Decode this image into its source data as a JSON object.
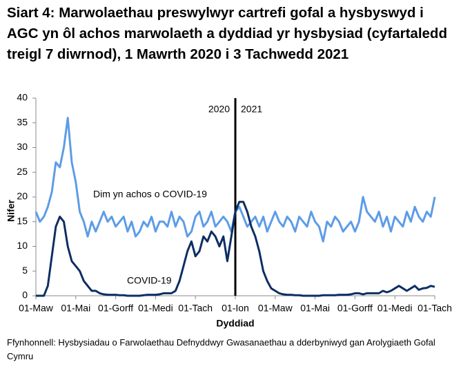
{
  "chart_data": {
    "type": "line",
    "title": "Siart 4: Marwolaethau preswylwyr cartrefi gofal a hysbyswyd i AGC yn ôl achos marwolaeth a dyddiad yr hysbysiad (cyfartaledd treigl 7 diwrnod), 1 Mawrth 2020 i 3 Tachwedd 2021",
    "xlabel": "Dyddiad",
    "ylabel": "Nifer",
    "source": "Ffynhonnell: Hysbysiadau o Farwolaethau Defnyddwyr Gwasanaethau a dderbyniwyd gan Arolygiaeth Gofal Cymru",
    "categories": [
      "01-Maw",
      null,
      null,
      null,
      null,
      null,
      null,
      null,
      null,
      null,
      "01-Mai",
      null,
      null,
      null,
      null,
      null,
      null,
      null,
      null,
      null,
      "01-Gorff",
      null,
      null,
      null,
      null,
      null,
      null,
      null,
      null,
      null,
      "01-Medi",
      null,
      null,
      null,
      null,
      null,
      null,
      null,
      null,
      null,
      "01-Tach",
      null,
      null,
      null,
      null,
      null,
      null,
      null,
      null,
      null,
      "01-Ion",
      null,
      null,
      null,
      null,
      null,
      null,
      null,
      null,
      null,
      "01-Maw",
      null,
      null,
      null,
      null,
      null,
      null,
      null,
      null,
      null,
      "01-Mai",
      null,
      null,
      null,
      null,
      null,
      null,
      null,
      null,
      null,
      "01-Gorff",
      null,
      null,
      null,
      null,
      null,
      null,
      null,
      null,
      null,
      "01-Medi",
      null,
      null,
      null,
      null,
      null,
      null,
      null,
      null,
      null,
      "01-Tach"
    ],
    "divider_index": 50,
    "annotations": [
      "2020",
      "2021"
    ],
    "series": [
      {
        "name": "Dim yn achos o COVID-19",
        "color": "#5d9ce6",
        "values": [
          17,
          15,
          16,
          18,
          21,
          27,
          26,
          30,
          36,
          27,
          23,
          17,
          15,
          12,
          15,
          13,
          15,
          17,
          15,
          16,
          14,
          15,
          16,
          13,
          15,
          12,
          13,
          15,
          14,
          16,
          13,
          15,
          15,
          14,
          17,
          14,
          16,
          15,
          12,
          13,
          16,
          17,
          14,
          15,
          17,
          14,
          15,
          16,
          15,
          13,
          17,
          18,
          16,
          14,
          15,
          16,
          14,
          16,
          13,
          15,
          17,
          15,
          14,
          16,
          15,
          13,
          16,
          15,
          14,
          17,
          15,
          14,
          11,
          15,
          14,
          16,
          15,
          13,
          14,
          15,
          13,
          15,
          20,
          17,
          16,
          15,
          17,
          14,
          16,
          13,
          16,
          15,
          14,
          17,
          15,
          18,
          16,
          15,
          17,
          16,
          20
        ]
      },
      {
        "name": "COVID-19",
        "color": "#0d2e63",
        "values": [
          0,
          0,
          0,
          2,
          8,
          14,
          16,
          15,
          10,
          7,
          6,
          5,
          3,
          2,
          1,
          1,
          0.5,
          0.3,
          0.2,
          0.2,
          0.2,
          0.1,
          0.1,
          0,
          0,
          0,
          0,
          0.1,
          0.2,
          0.2,
          0.2,
          0.3,
          0.5,
          0.5,
          0.5,
          1,
          3,
          6,
          9,
          11,
          8,
          9,
          12,
          11,
          13,
          12,
          10,
          12,
          7,
          12,
          17,
          19,
          19,
          17,
          14,
          12,
          9,
          5,
          3,
          1.5,
          1,
          0.5,
          0.3,
          0.2,
          0.2,
          0.1,
          0.1,
          0,
          0,
          0,
          0,
          0,
          0.1,
          0.1,
          0.1,
          0.1,
          0.2,
          0.2,
          0.2,
          0.3,
          0.5,
          0.5,
          0.3,
          0.5,
          0.5,
          0.5,
          0.5,
          1,
          0.7,
          1,
          1.5,
          2,
          1.5,
          1,
          1.5,
          2,
          1.2,
          1.5,
          1.6,
          2,
          1.8
        ]
      }
    ],
    "ylim": [
      0,
      40
    ],
    "yticks": [
      0,
      5,
      10,
      15,
      20,
      25,
      30,
      35,
      40
    ],
    "grid": false
  }
}
